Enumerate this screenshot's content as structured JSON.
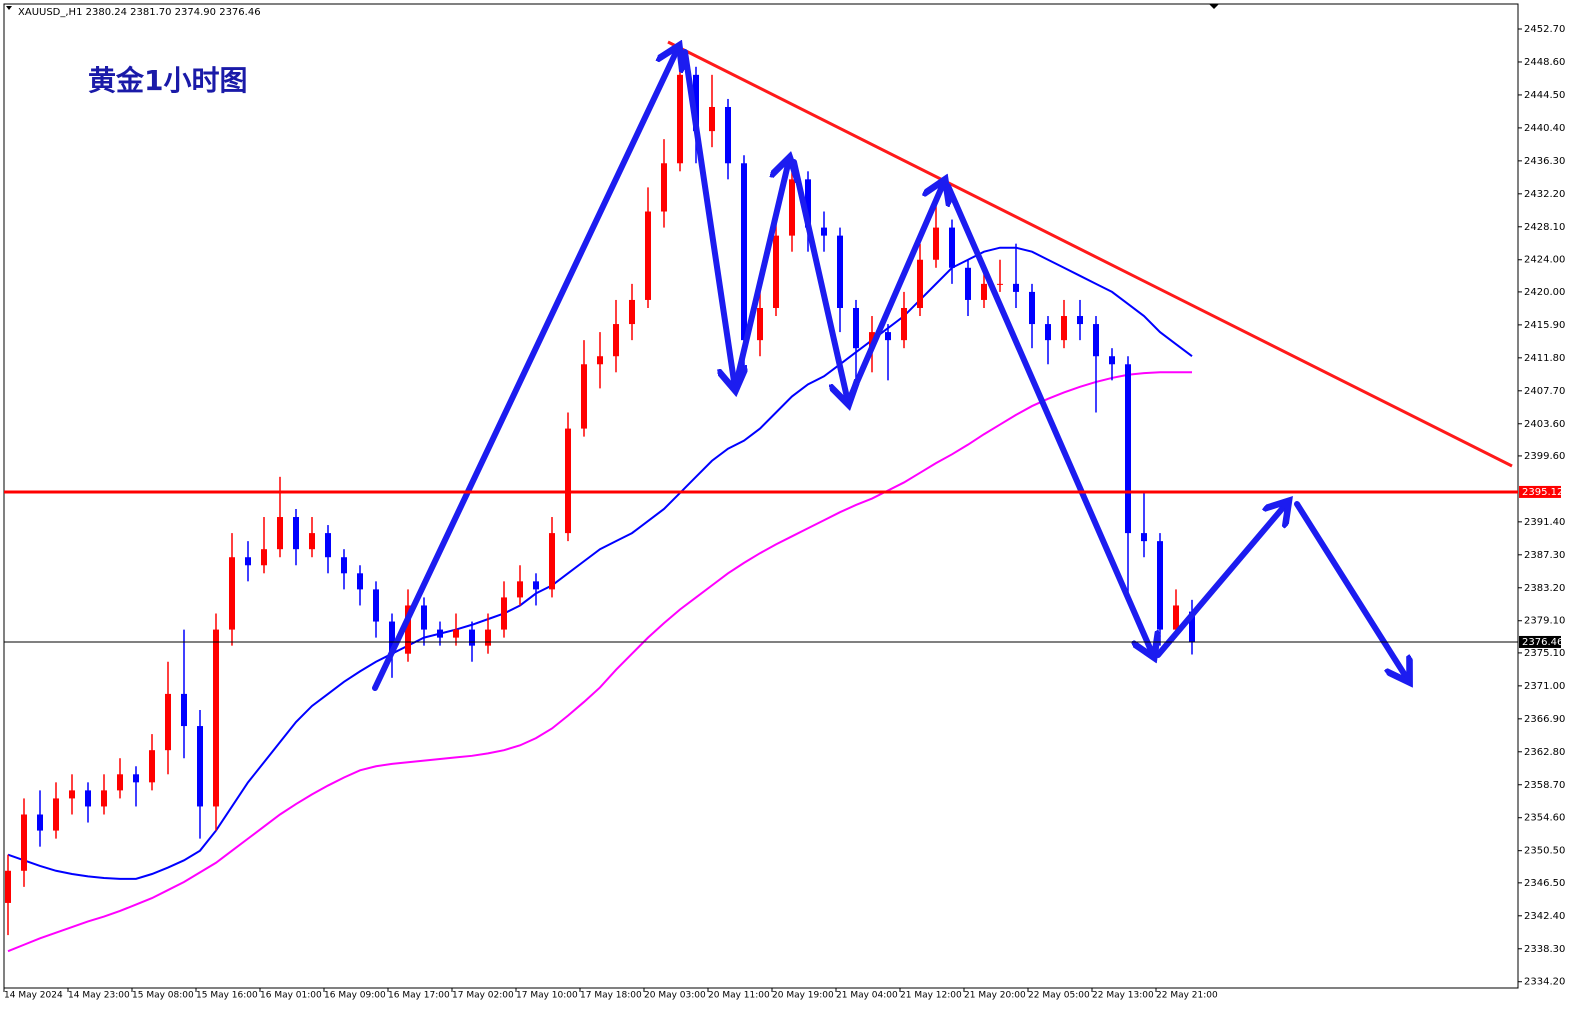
{
  "chart_data": {
    "type": "candlestick",
    "header": "XAUUSD_,H1  2380.24 2381.70 2374.90 2376.46",
    "title": "黄金1小时图",
    "up_color": "#ff0000",
    "down_color": "#0000ff",
    "categories": [
      "14 May 2024",
      null,
      null,
      null,
      "14 May 23:00",
      null,
      null,
      null,
      "15 May 08:00",
      null,
      null,
      null,
      "15 May 16:00",
      null,
      null,
      null,
      "16 May 01:00",
      null,
      null,
      null,
      "16 May 09:00",
      null,
      null,
      null,
      "16 May 17:00",
      null,
      null,
      null,
      "17 May 02:00",
      null,
      null,
      null,
      "17 May 10:00",
      null,
      null,
      null,
      "17 May 18:00",
      null,
      null,
      null,
      "20 May 03:00",
      null,
      null,
      null,
      "20 May 11:00",
      null,
      null,
      null,
      "20 May 19:00",
      null,
      null,
      null,
      "21 May 04:00",
      null,
      null,
      null,
      "21 May 12:00",
      null,
      null,
      null,
      "21 May 20:00",
      null,
      null,
      null,
      "22 May 05:00",
      null,
      null,
      null,
      "22 May 13:00",
      null,
      null,
      null,
      "22 May 21:00",
      null,
      null
    ],
    "ohlc": [
      [
        2344,
        2350,
        2340,
        2348
      ],
      [
        2348,
        2357,
        2346,
        2355
      ],
      [
        2355,
        2358,
        2351,
        2353
      ],
      [
        2353,
        2359,
        2352,
        2357
      ],
      [
        2357,
        2360,
        2355,
        2358
      ],
      [
        2358,
        2359,
        2354,
        2356
      ],
      [
        2356,
        2360,
        2355,
        2358
      ],
      [
        2358,
        2362,
        2357,
        2360
      ],
      [
        2360,
        2361,
        2356,
        2359
      ],
      [
        2359,
        2365,
        2358,
        2363
      ],
      [
        2363,
        2374,
        2360,
        2370
      ],
      [
        2370,
        2378,
        2362,
        2366
      ],
      [
        2366,
        2368,
        2352,
        2356
      ],
      [
        2356,
        2380,
        2353,
        2378
      ],
      [
        2378,
        2390,
        2376,
        2387
      ],
      [
        2387,
        2389,
        2384,
        2386
      ],
      [
        2386,
        2392,
        2385,
        2388
      ],
      [
        2388,
        2397,
        2387,
        2392
      ],
      [
        2392,
        2393,
        2386,
        2388
      ],
      [
        2388,
        2392,
        2387,
        2390
      ],
      [
        2390,
        2391,
        2385,
        2387
      ],
      [
        2387,
        2388,
        2383,
        2385
      ],
      [
        2385,
        2386,
        2381,
        2383
      ],
      [
        2383,
        2384,
        2377,
        2379
      ],
      [
        2379,
        2380,
        2372,
        2375
      ],
      [
        2375,
        2383,
        2374,
        2381
      ],
      [
        2381,
        2382,
        2376,
        2378
      ],
      [
        2378,
        2379,
        2376,
        2377
      ],
      [
        2377,
        2380,
        2376,
        2378
      ],
      [
        2378,
        2379,
        2374,
        2376
      ],
      [
        2376,
        2380,
        2375,
        2378
      ],
      [
        2378,
        2384,
        2377,
        2382
      ],
      [
        2382,
        2386,
        2381,
        2384
      ],
      [
        2384,
        2385,
        2381,
        2383
      ],
      [
        2383,
        2392,
        2382,
        2390
      ],
      [
        2390,
        2405,
        2389,
        2403
      ],
      [
        2403,
        2414,
        2402,
        2411
      ],
      [
        2411,
        2415,
        2408,
        2412
      ],
      [
        2412,
        2419,
        2410,
        2416
      ],
      [
        2416,
        2421,
        2414,
        2419
      ],
      [
        2419,
        2433,
        2418,
        2430
      ],
      [
        2430,
        2439,
        2428,
        2436
      ],
      [
        2436,
        2450,
        2435,
        2447
      ],
      [
        2447,
        2448,
        2436,
        2440
      ],
      [
        2440,
        2447,
        2438,
        2443
      ],
      [
        2443,
        2444,
        2434,
        2436
      ],
      [
        2436,
        2437,
        2410,
        2414
      ],
      [
        2414,
        2420,
        2412,
        2418
      ],
      [
        2418,
        2429,
        2417,
        2427
      ],
      [
        2427,
        2436,
        2425,
        2434
      ],
      [
        2434,
        2435,
        2425,
        2428
      ],
      [
        2428,
        2430,
        2425,
        2427
      ],
      [
        2427,
        2428,
        2415,
        2418
      ],
      [
        2418,
        2419,
        2409,
        2413
      ],
      [
        2413,
        2417,
        2410,
        2415
      ],
      [
        2415,
        2416,
        2409,
        2414
      ],
      [
        2414,
        2420,
        2413,
        2418
      ],
      [
        2418,
        2426,
        2417,
        2424
      ],
      [
        2424,
        2431,
        2423,
        2428
      ],
      [
        2428,
        2429,
        2421,
        2423
      ],
      [
        2423,
        2424,
        2417,
        2419
      ],
      [
        2419,
        2423,
        2418,
        2421
      ],
      [
        2421,
        2424,
        2420,
        2421
      ],
      [
        2421,
        2426,
        2418,
        2420
      ],
      [
        2420,
        2421,
        2413,
        2416
      ],
      [
        2416,
        2417,
        2411,
        2414
      ],
      [
        2414,
        2419,
        2413,
        2417
      ],
      [
        2417,
        2419,
        2414,
        2416
      ],
      [
        2416,
        2417,
        2405,
        2412
      ],
      [
        2412,
        2413,
        2409,
        2411
      ],
      [
        2411,
        2412,
        2382,
        2390
      ],
      [
        2390,
        2395,
        2387,
        2389
      ],
      [
        2389,
        2390,
        2376,
        2378
      ],
      [
        2378,
        2383,
        2377,
        2381
      ],
      [
        2380.24,
        2381.7,
        2374.9,
        2376.46
      ]
    ],
    "lines": [
      {
        "color": "#0000ff",
        "values": [
          2350,
          2349.3,
          2348.6,
          2348,
          2347.6,
          2347.3,
          2347.1,
          2347,
          2347,
          2347.6,
          2348.4,
          2349.3,
          2350.5,
          2353,
          2356,
          2359,
          2361.5,
          2364,
          2366.5,
          2368.5,
          2370,
          2371.5,
          2372.8,
          2374,
          2375,
          2376,
          2377,
          2377.5,
          2378,
          2378.6,
          2379.3,
          2380,
          2381,
          2382.5,
          2383.5,
          2385,
          2386.5,
          2388,
          2389,
          2390,
          2391.5,
          2393,
          2395,
          2397,
          2399,
          2400.5,
          2401.5,
          2403,
          2405,
          2407,
          2408.5,
          2409.5,
          2411,
          2412.5,
          2414,
          2415.5,
          2417,
          2419,
          2421,
          2423,
          2424,
          2425,
          2425.5,
          2425.5,
          2425,
          2424,
          2423,
          2422,
          2421,
          2420,
          2418.5,
          2417,
          2415,
          2413.5,
          2412
        ]
      },
      {
        "color": "#ff00ff",
        "values": [
          2338,
          2338.8,
          2339.6,
          2340.3,
          2341,
          2341.7,
          2342.3,
          2343,
          2343.8,
          2344.6,
          2345.6,
          2346.6,
          2347.8,
          2349,
          2350.5,
          2352,
          2353.5,
          2355,
          2356.3,
          2357.5,
          2358.6,
          2359.6,
          2360.5,
          2361,
          2361.3,
          2361.5,
          2361.7,
          2361.9,
          2362.1,
          2362.3,
          2362.6,
          2363,
          2363.6,
          2364.5,
          2365.7,
          2367.3,
          2369,
          2370.8,
          2373,
          2375,
          2377,
          2378.8,
          2380.5,
          2382,
          2383.5,
          2385,
          2386.3,
          2387.5,
          2388.6,
          2389.6,
          2390.6,
          2391.6,
          2392.6,
          2393.5,
          2394.3,
          2395.3,
          2396.3,
          2397.5,
          2398.7,
          2399.8,
          2401,
          2402.3,
          2403.5,
          2404.7,
          2405.8,
          2406.7,
          2407.5,
          2408.2,
          2408.8,
          2409.3,
          2409.7,
          2409.9,
          2410,
          2410,
          2410
        ]
      }
    ],
    "price_lines": [
      {
        "value": 2395.12,
        "color": "#ff0000"
      },
      {
        "value": 2376.46,
        "color": "#000000"
      }
    ],
    "ylim": [
      2333.42,
      2455.81
    ],
    "yticks": [
      {
        "value": 2452.7,
        "label": "2452.70"
      },
      {
        "value": 2448.6,
        "label": "2448.60"
      },
      {
        "value": 2444.5,
        "label": "2444.50"
      },
      {
        "value": 2440.4,
        "label": "2440.40"
      },
      {
        "value": 2436.3,
        "label": "2436.30"
      },
      {
        "value": 2432.2,
        "label": "2432.20"
      },
      {
        "value": 2428.1,
        "label": "2428.10"
      },
      {
        "value": 2424,
        "label": "2424.00"
      },
      {
        "value": 2420,
        "label": "2420.00"
      },
      {
        "value": 2415.9,
        "label": "2415.90"
      },
      {
        "value": 2411.8,
        "label": "2411.80"
      },
      {
        "value": 2407.7,
        "label": "2407.70"
      },
      {
        "value": 2403.6,
        "label": "2403.60"
      },
      {
        "value": 2399.6,
        "label": "2399.60"
      },
      {
        "value": 2391.4,
        "label": "2391.40"
      },
      {
        "value": 2387.3,
        "label": "2387.30"
      },
      {
        "value": 2383.2,
        "label": "2383.20"
      },
      {
        "value": 2379.1,
        "label": "2379.10"
      },
      {
        "value": 2375.1,
        "label": "2375.10"
      },
      {
        "value": 2371,
        "label": "2371.00"
      },
      {
        "value": 2366.9,
        "label": "2366.90"
      },
      {
        "value": 2362.8,
        "label": "2362.80"
      },
      {
        "value": 2358.7,
        "label": "2358.70"
      },
      {
        "value": 2354.6,
        "label": "2354.60"
      },
      {
        "value": 2350.5,
        "label": "2350.50"
      },
      {
        "value": 2346.5,
        "label": "2346.50"
      },
      {
        "value": 2342.4,
        "label": "2342.40"
      },
      {
        "value": 2338.3,
        "label": "2338.30"
      },
      {
        "value": 2334.2,
        "label": "2334.20"
      }
    ]
  }
}
